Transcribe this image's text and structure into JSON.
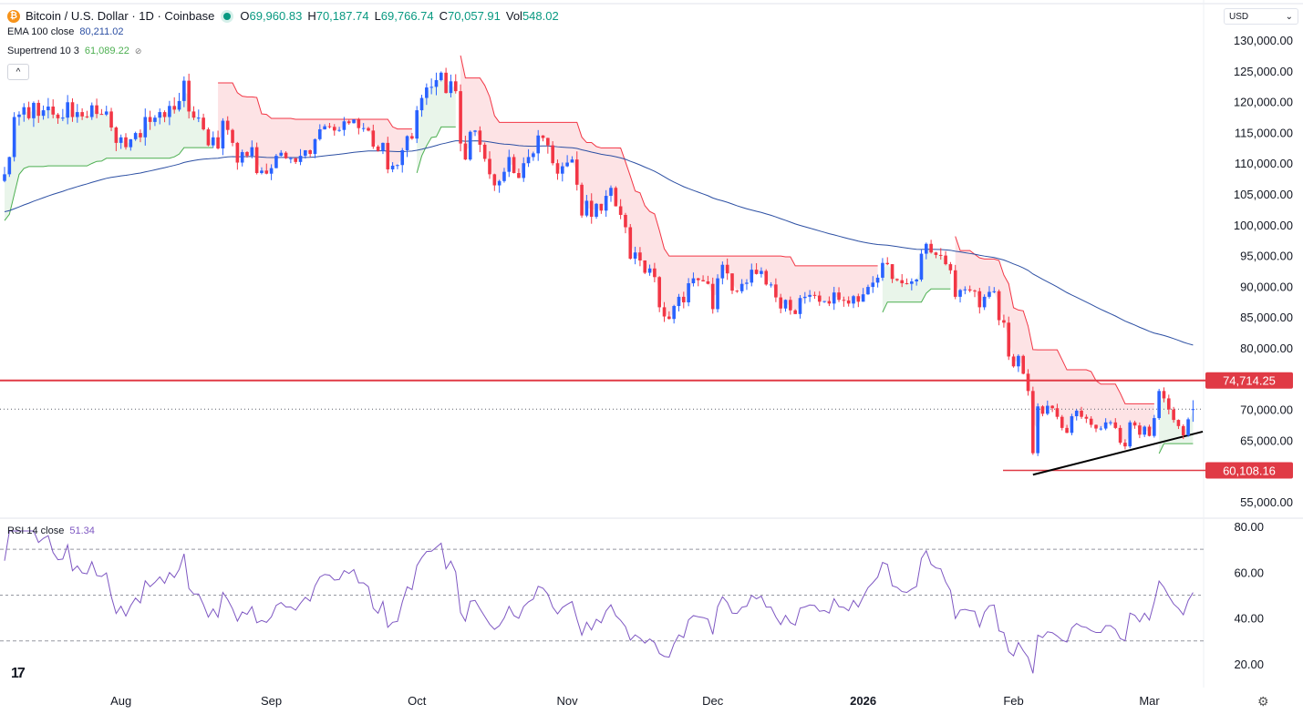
{
  "header": {
    "symbol_title": "Bitcoin / U.S. Dollar · 1D · Coinbase",
    "o_label": "O",
    "o": "69,960.83",
    "h_label": "H",
    "h": "70,187.74",
    "l_label": "L",
    "l": "69,766.74",
    "c_label": "C",
    "c": "70,057.91",
    "vol_label": "Vol",
    "vol": "548.02",
    "ema_label": "EMA 100 close",
    "ema_value": "80,211.02",
    "st_label": "Supertrend 10 3",
    "st_value": "61,089.22",
    "collapse": "^",
    "currency": "USD"
  },
  "colors": {
    "up": "#2962ff",
    "down": "#f23645",
    "ema": "#2c4fa3",
    "st_up": "#4caf50",
    "st_down": "#f23645",
    "rsi": "#7e57c2",
    "levels": "#e03a45"
  },
  "rsi_label": {
    "name": "RSI 14 close",
    "value": "51.34"
  },
  "chart_data": {
    "type": "candlestick",
    "symbol": "Bitcoin / U.S. Dollar",
    "interval": "1D",
    "unit_note": "closes in thousands USD",
    "closes_k": [
      108.2,
      111,
      117.5,
      117.9,
      119.1,
      117.3,
      119.8,
      117.7,
      118.6,
      119.2,
      117.9,
      117.3,
      117.4,
      119.9,
      117.5,
      118.3,
      117.6,
      117.5,
      119.4,
      118.0,
      117.9,
      118.4,
      115.8,
      113.3,
      114.2,
      112.6,
      113.9,
      114.9,
      114.2,
      117.5,
      116.7,
      117.4,
      118.3,
      117.5,
      119.3,
      118.7,
      120.1,
      123.4,
      118.4,
      117.4,
      117.4,
      115.5,
      112.9,
      114.2,
      112.4,
      116.9,
      115.4,
      113.3,
      110.1,
      111.8,
      111.2,
      112.6,
      108.4,
      108.8,
      108.3,
      109.2,
      111.2,
      111.7,
      110.8,
      110.8,
      110.2,
      111.2,
      112.1,
      111.5,
      113.9,
      115.5,
      116.0,
      115.9,
      115.3,
      115.4,
      116.8,
      116.5,
      117.1,
      115.7,
      115.7,
      115.3,
      112.7,
      112.0,
      113.3,
      109.0,
      109.6,
      109.7,
      112.1,
      114.4,
      114.0,
      118.6,
      120.6,
      122.3,
      122.4,
      123.5,
      124.7,
      121.4,
      123.3,
      121.7,
      113.2,
      110.6,
      115.1,
      115.3,
      113.0,
      110.7,
      108.2,
      106.4,
      107.1,
      108.6,
      111.0,
      108.4,
      107.6,
      110.0,
      111.0,
      111.6,
      114.5,
      114.1,
      112.9,
      110.0,
      108.3,
      109.5,
      110.1,
      110.6,
      106.5,
      101.5,
      103.9,
      101.3,
      103.4,
      102.3,
      104.7,
      106.0,
      103.0,
      101.6,
      99.6,
      94.5,
      95.5,
      94.2,
      92.2,
      92.9,
      91.5,
      86.6,
      85.1,
      84.7,
      86.8,
      88.3,
      87.4,
      90.5,
      91.3,
      91.0,
      90.8,
      90.4,
      86.3,
      91.3,
      93.5,
      92.1,
      89.3,
      89.2,
      90.4,
      90.6,
      92.7,
      92.0,
      92.5,
      90.3,
      90.3,
      88.2,
      86.4,
      87.8,
      86.1,
      85.5,
      88.1,
      88.3,
      88.6,
      88.5,
      87.5,
      87.6,
      87.2,
      89.0,
      87.8,
      87.7,
      87.2,
      88.4,
      87.5,
      88.7,
      89.9,
      90.6,
      91.4,
      93.8,
      93.6,
      91.2,
      91.0,
      90.5,
      90.4,
      90.8,
      91.1,
      95.3,
      96.9,
      95.5,
      95.1,
      95.0,
      93.6,
      92.6,
      88.3,
      89.4,
      89.5,
      89.3,
      89.2,
      86.6,
      88.3,
      89.1,
      89.2,
      84.5,
      84.1,
      78.6,
      77.0,
      78.7,
      75.8,
      73.0,
      62.9,
      70.5,
      69.3,
      70.6,
      70.2,
      68.8,
      67.0,
      66.2,
      68.9,
      69.8,
      68.8,
      68.5,
      67.5,
      66.9,
      66.9,
      67.9,
      67.9,
      67.0,
      64.6,
      64.0,
      67.9,
      67.4,
      65.9,
      67.2,
      65.7,
      68.6,
      73.0,
      71.8,
      70.0,
      68.3,
      67.3,
      65.8,
      68.4,
      70.06
    ],
    "last_ohlc": {
      "open": 69960.83,
      "high": 70187.74,
      "low": 69766.74,
      "close": 70057.91
    },
    "price_ylim": [
      55000,
      130000
    ],
    "price_ticks": [
      "130,000.00",
      "125,000.00",
      "120,000.00",
      "115,000.00",
      "110,000.00",
      "105,000.00",
      "100,000.00",
      "95,000.00",
      "90,000.00",
      "85,000.00",
      "80,000.00",
      "75,000.00",
      "70,000.00",
      "65,000.00",
      "60,000.00",
      "55,000.00"
    ],
    "price_tick_values": [
      130000,
      125000,
      120000,
      115000,
      110000,
      105000,
      100000,
      95000,
      90000,
      85000,
      80000,
      75000,
      70000,
      65000,
      60000,
      55000
    ],
    "horizontal_levels": [
      {
        "value": 74714.25,
        "label": "74,714.25"
      },
      {
        "value": 60108.16,
        "label": "60,108.16"
      }
    ],
    "trendline": {
      "from": [
        "2026-02-05",
        59400
      ],
      "to": [
        "2026-03-12",
        66400
      ]
    },
    "x_ticks": [
      {
        "label": "Aug",
        "date": "2025-08-01"
      },
      {
        "label": "Sep",
        "date": "2025-09-01"
      },
      {
        "label": "Oct",
        "date": "2025-10-01"
      },
      {
        "label": "Nov",
        "date": "2025-11-01"
      },
      {
        "label": "Dec",
        "date": "2025-12-01"
      },
      {
        "label": "2026",
        "date": "2026-01-01",
        "bold": true
      },
      {
        "label": "Feb",
        "date": "2026-02-01"
      },
      {
        "label": "Mar",
        "date": "2026-03-01"
      }
    ],
    "indicators": {
      "ema": 100,
      "supertrend": [
        10,
        3
      ],
      "rsi": 14
    },
    "rsi_ylim": [
      10,
      80
    ],
    "rsi_ticks": [
      "80.00",
      "60.00",
      "40.00",
      "20.00"
    ],
    "rsi_tick_values": [
      80,
      60,
      40,
      20
    ],
    "rsi_bands": [
      70,
      50,
      30
    ]
  }
}
